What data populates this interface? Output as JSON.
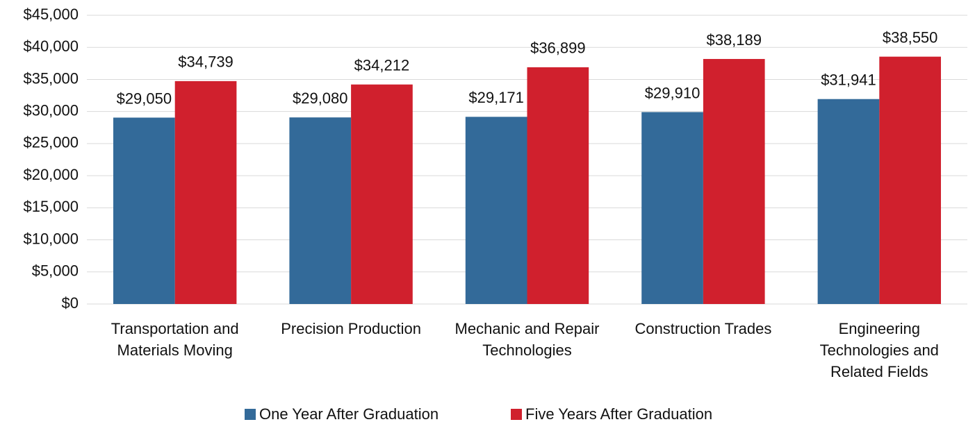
{
  "chart_data": {
    "type": "bar",
    "categories": [
      "Transportation and Materials Moving",
      "Precision Production",
      "Mechanic and Repair Technologies",
      "Construction Trades",
      "Engineering Technologies and Related Fields"
    ],
    "series": [
      {
        "name": "One Year After Graduation",
        "color": "#336a99",
        "values": [
          29050,
          29080,
          29171,
          29910,
          31941
        ],
        "value_labels": [
          "$29,050",
          "$29,080",
          "$29,171",
          "$29,910",
          "$31,941"
        ]
      },
      {
        "name": "Five Years After Graduation",
        "color": "#d0202d",
        "values": [
          34739,
          34212,
          36899,
          38189,
          38550
        ],
        "value_labels": [
          "$34,739",
          "$34,212",
          "$36,899",
          "$38,189",
          "$38,550"
        ]
      }
    ],
    "ylim": [
      0,
      45000
    ],
    "yticks": [
      {
        "value": 0,
        "label": "$0"
      },
      {
        "value": 5000,
        "label": "$5,000"
      },
      {
        "value": 10000,
        "label": "$10,000"
      },
      {
        "value": 15000,
        "label": "$15,000"
      },
      {
        "value": 20000,
        "label": "$20,000"
      },
      {
        "value": 25000,
        "label": "$25,000"
      },
      {
        "value": 30000,
        "label": "$30,000"
      },
      {
        "value": 35000,
        "label": "$35,000"
      },
      {
        "value": 40000,
        "label": "$40,000"
      },
      {
        "value": 45000,
        "label": "$45,000"
      }
    ],
    "grid": true,
    "legend": "bottom"
  }
}
